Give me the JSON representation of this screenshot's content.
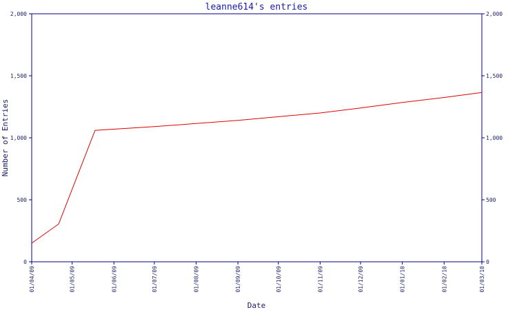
{
  "chart_data": {
    "type": "line",
    "title": "leanne614's entries",
    "xlabel": "Date",
    "ylabel": "Number of Entries",
    "ylim": [
      0,
      2000
    ],
    "yticks": [
      0,
      500,
      1000,
      1500,
      2000
    ],
    "ytick_labels": [
      "0",
      "500",
      "1,000",
      "1,500",
      "2,000"
    ],
    "xlim": [
      "2009-04-01",
      "2010-03-01"
    ],
    "xticks": [
      "2009-04-01",
      "2009-05-01",
      "2009-06-01",
      "2009-07-01",
      "2009-08-01",
      "2009-09-01",
      "2009-10-01",
      "2009-11-01",
      "2009-12-01",
      "2010-01-01",
      "2010-02-01",
      "2010-03-01"
    ],
    "xtick_labels": [
      "01/04/09",
      "01/05/09",
      "01/06/09",
      "01/07/09",
      "01/08/09",
      "01/09/09",
      "01/10/09",
      "01/11/09",
      "01/12/09",
      "01/01/10",
      "01/02/10",
      "01/03/10"
    ],
    "right_axis_mirror": true,
    "grid": false,
    "series": [
      {
        "color": "#dd0000",
        "x": [
          "2009-04-01",
          "2009-04-21",
          "2009-05-18",
          "2009-07-01",
          "2009-08-01",
          "2009-09-01",
          "2009-10-01",
          "2009-11-01",
          "2009-12-01",
          "2010-01-01",
          "2010-02-01",
          "2010-03-01"
        ],
        "y": [
          150,
          305,
          1060,
          1090,
          1115,
          1140,
          1170,
          1200,
          1240,
          1285,
          1325,
          1365
        ]
      }
    ]
  }
}
